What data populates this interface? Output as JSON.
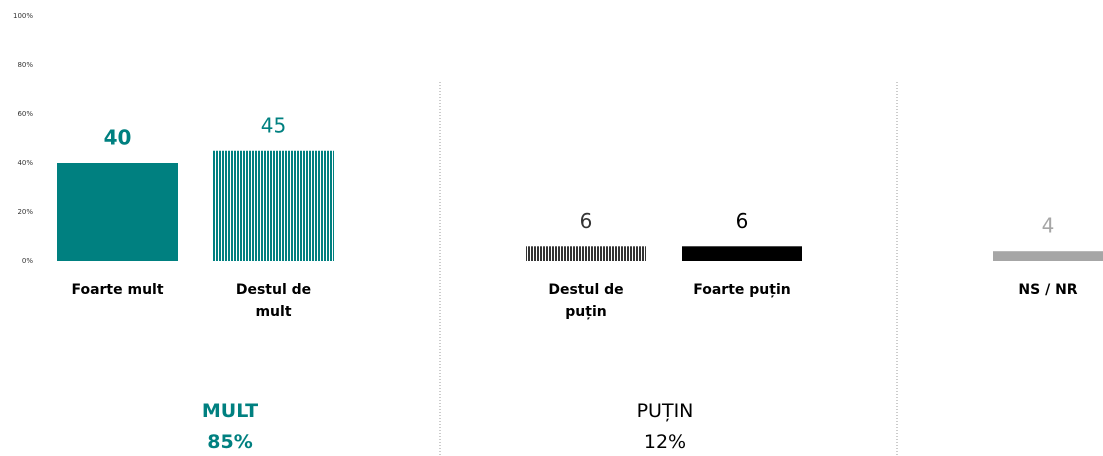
{
  "chart_data": {
    "type": "bar",
    "categories": [
      "Foarte mult",
      "Destul de mult",
      "Destul de puțin",
      "Foarte puțin",
      "NS / NR"
    ],
    "values": [
      40,
      45,
      6,
      6,
      4
    ],
    "colors": [
      "#008080",
      "#008080",
      "#333333",
      "#000000",
      "#a6a6a6"
    ],
    "patterned": [
      false,
      true,
      true,
      false,
      false
    ],
    "ylim": [
      0,
      100
    ],
    "yticks": [
      {
        "value": 0,
        "label": "0%"
      },
      {
        "value": 20,
        "label": "20%"
      },
      {
        "value": 40,
        "label": "40%"
      },
      {
        "value": 60,
        "label": "60%"
      },
      {
        "value": 80,
        "label": "80%"
      },
      {
        "value": 100,
        "label": "100%"
      }
    ],
    "groups": [
      {
        "label": "MULT",
        "total": "85%",
        "color": "#008080"
      },
      {
        "label": "PUȚIN",
        "total": "12%",
        "color": "#000000"
      }
    ]
  }
}
